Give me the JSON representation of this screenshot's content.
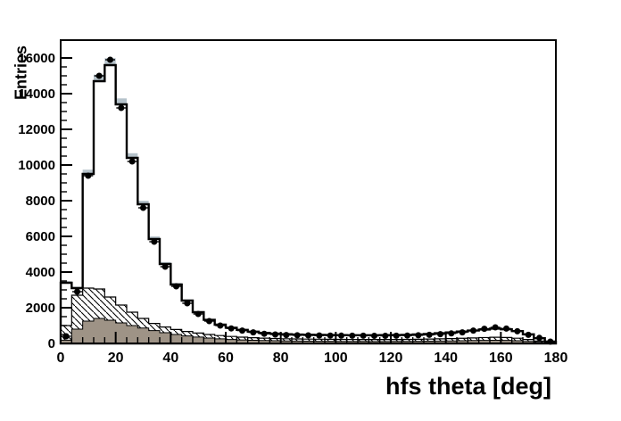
{
  "chart_data": {
    "type": "bar",
    "subtype": "histogram-with-data-points",
    "title": "",
    "xlabel": "hfs theta [deg]",
    "ylabel": "Entries",
    "xlim": [
      0,
      180
    ],
    "ylim": [
      0,
      17000
    ],
    "grid": false,
    "legend": "none",
    "x_major_ticks": [
      0,
      20,
      40,
      60,
      80,
      100,
      120,
      140,
      160,
      180
    ],
    "y_major_ticks": [
      0,
      2000,
      4000,
      6000,
      8000,
      10000,
      12000,
      14000,
      16000
    ],
    "x_minor_step": 4,
    "y_minor_step": 500,
    "bin_width_deg": 4,
    "bin_centers": [
      2,
      6,
      10,
      14,
      18,
      22,
      26,
      30,
      34,
      38,
      42,
      46,
      50,
      54,
      58,
      62,
      66,
      70,
      74,
      78,
      82,
      86,
      90,
      94,
      98,
      102,
      106,
      110,
      114,
      118,
      122,
      126,
      130,
      134,
      138,
      142,
      146,
      150,
      154,
      158,
      162,
      166,
      170,
      174,
      178
    ],
    "series": [
      {
        "name": "data-points",
        "style": "scatter-filled-circles-with-error-bars",
        "color": "#000000",
        "values": [
          400,
          2900,
          9400,
          15000,
          15900,
          13200,
          10200,
          7600,
          5700,
          4300,
          3200,
          2250,
          1650,
          1250,
          1000,
          840,
          720,
          620,
          540,
          500,
          470,
          455,
          450,
          445,
          440,
          435,
          430,
          430,
          425,
          425,
          430,
          440,
          455,
          480,
          520,
          560,
          620,
          720,
          820,
          900,
          830,
          680,
          480,
          310,
          100
        ]
      },
      {
        "name": "mc-total-histogram",
        "style": "step-outline-white-fill",
        "color": "#000000",
        "fill": "#ffffff",
        "values": [
          3400,
          3100,
          9500,
          14700,
          15600,
          13400,
          10400,
          7800,
          5850,
          4450,
          3300,
          2400,
          1750,
          1320,
          1050,
          880,
          760,
          660,
          590,
          545,
          515,
          495,
          485,
          475,
          470,
          465,
          460,
          460,
          460,
          465,
          470,
          480,
          500,
          530,
          570,
          615,
          665,
          720,
          780,
          830,
          790,
          690,
          510,
          290,
          100
        ]
      },
      {
        "name": "mc-uncertainty-band",
        "style": "band-around-mc-total",
        "color": "#b5c2ca",
        "relative_half_width": 0.025,
        "min_half_width": 40
      },
      {
        "name": "background-hatched-histogram",
        "style": "step-hatched-diagonal",
        "outline_color": "#000000",
        "hatch_color": "#000000",
        "fill": "#ffffff",
        "values": [
          1000,
          2700,
          3100,
          3050,
          2600,
          2150,
          1750,
          1400,
          1120,
          920,
          780,
          670,
          580,
          500,
          440,
          390,
          350,
          320,
          295,
          275,
          260,
          250,
          240,
          235,
          230,
          225,
          222,
          220,
          218,
          218,
          220,
          225,
          232,
          242,
          255,
          270,
          288,
          308,
          328,
          345,
          330,
          290,
          220,
          130,
          45
        ]
      },
      {
        "name": "background-solid-histogram",
        "style": "step-solid-fill",
        "outline_color": "#000000",
        "fill": "#9e9386",
        "values": [
          180,
          800,
          1250,
          1400,
          1300,
          1150,
          1000,
          860,
          720,
          600,
          500,
          420,
          355,
          300,
          255,
          220,
          195,
          175,
          160,
          148,
          138,
          130,
          125,
          120,
          117,
          114,
          112,
          110,
          109,
          109,
          110,
          113,
          117,
          123,
          130,
          139,
          149,
          160,
          170,
          178,
          170,
          148,
          112,
          65,
          22
        ]
      }
    ]
  }
}
